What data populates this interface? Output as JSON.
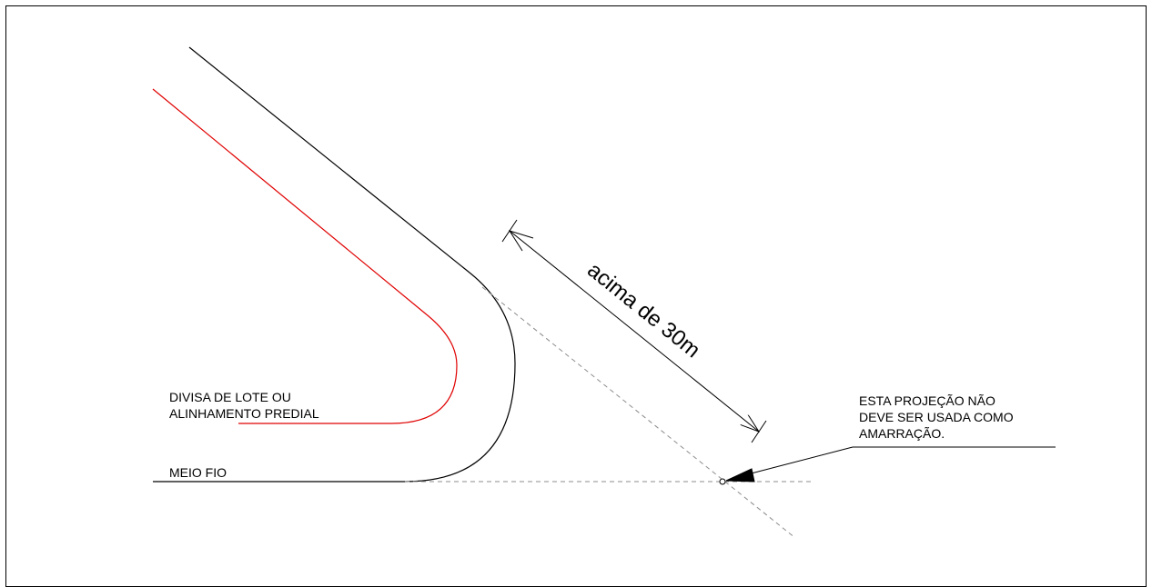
{
  "labels": {
    "lot_line_1": "DIVISA DE LOTE OU",
    "lot_line_2": "ALINHAMENTO PREDIAL",
    "curb": "MEIO FIO",
    "note_1": "ESTA PROJEÇÃO NÃO",
    "note_2": "DEVE SER USADA COMO",
    "note_3": "AMARRAÇÃO."
  },
  "dimension": {
    "text": "acima de 30m"
  },
  "colors": {
    "lot_line": "#e00000",
    "curb_line": "#000000",
    "projection_line": "#8c8c8c"
  }
}
